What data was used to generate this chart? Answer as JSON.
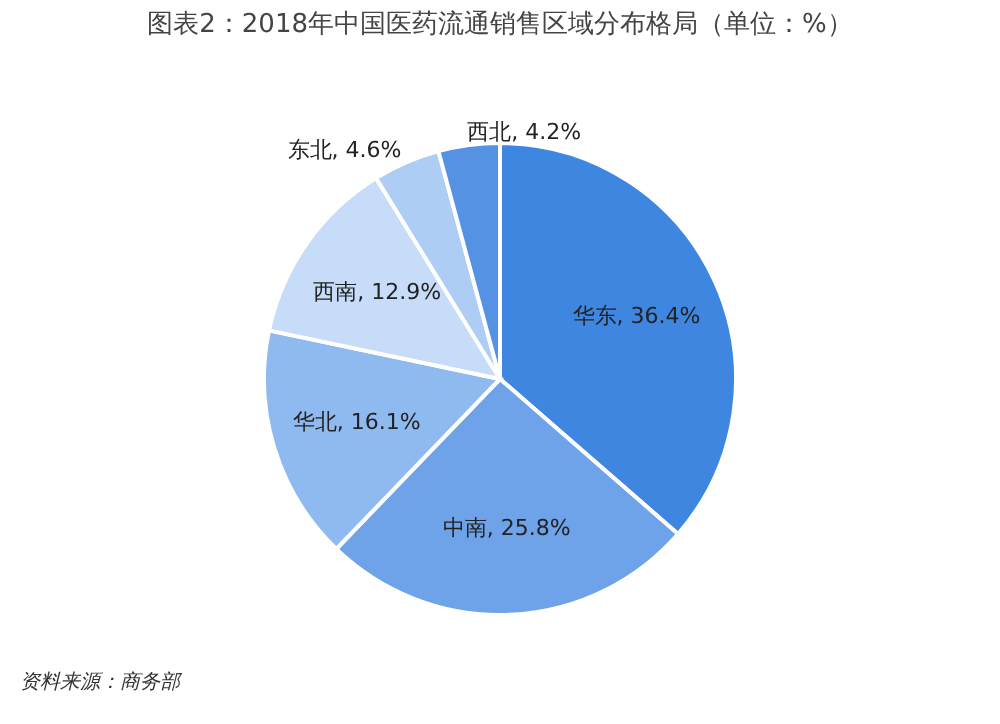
{
  "chart_data": {
    "type": "pie",
    "title": "图表2：2018年中国医药流通销售区域分布格局（单位：%）",
    "categories": [
      "华东",
      "中南",
      "华北",
      "西南",
      "东北",
      "西北"
    ],
    "values": [
      36.4,
      25.8,
      16.1,
      12.9,
      4.6,
      4.2
    ],
    "value_labels": [
      "36.4%",
      "25.8%",
      "16.1%",
      "12.9%",
      "4.6%",
      "4.2%"
    ],
    "colors": [
      "#3f86e0",
      "#6ea3ea",
      "#8fbaf0",
      "#c6dcf8",
      "#aecdf4",
      "#5592e4"
    ],
    "annotations": [
      "资料来源：商务部"
    ]
  }
}
